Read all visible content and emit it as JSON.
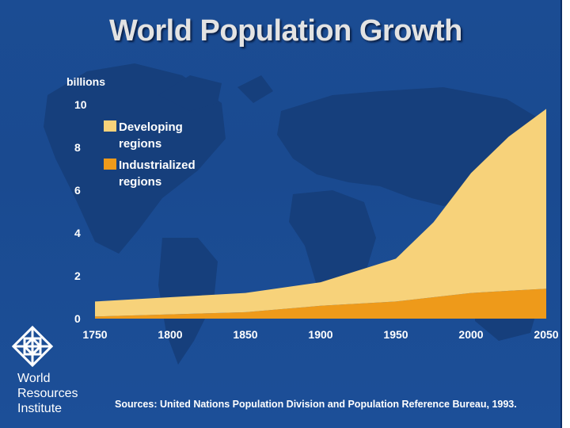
{
  "slide": {
    "title": "World Population Growth",
    "organization_lines": [
      "World",
      "Resources",
      "Institute"
    ],
    "sources": "Sources: United Nations Population Division and Population Reference Bureau, 1993."
  },
  "colors": {
    "background": "#1b4c93",
    "developing": "#f7d27a",
    "industrialized": "#ee9a1a",
    "text": "#ffffff"
  },
  "chart_data": {
    "type": "area",
    "stacked": true,
    "title": "World Population Growth",
    "ylabel": "billions",
    "xlabel": "",
    "xlim": [
      1750,
      2050
    ],
    "ylim": [
      0,
      10
    ],
    "x_ticks": [
      "1750",
      "1800",
      "1850",
      "1900",
      "1950",
      "2000",
      "2050"
    ],
    "y_ticks": [
      "0",
      "2",
      "4",
      "6",
      "8",
      "10"
    ],
    "legend_position": "top-left",
    "x": [
      1750,
      1800,
      1850,
      1900,
      1950,
      1975,
      2000,
      2025,
      2050
    ],
    "series": [
      {
        "name": "Industrialized regions",
        "legend_lines": [
          "Industrialized",
          "regions"
        ],
        "color": "#ee9a1a",
        "values": [
          0.1,
          0.2,
          0.3,
          0.6,
          0.8,
          1.0,
          1.2,
          1.3,
          1.4
        ]
      },
      {
        "name": "Developing regions",
        "legend_lines": [
          "Developing",
          "regions"
        ],
        "color": "#f7d27a",
        "values": [
          0.7,
          0.8,
          0.9,
          1.1,
          2.0,
          3.5,
          5.6,
          7.2,
          8.4
        ]
      }
    ]
  }
}
